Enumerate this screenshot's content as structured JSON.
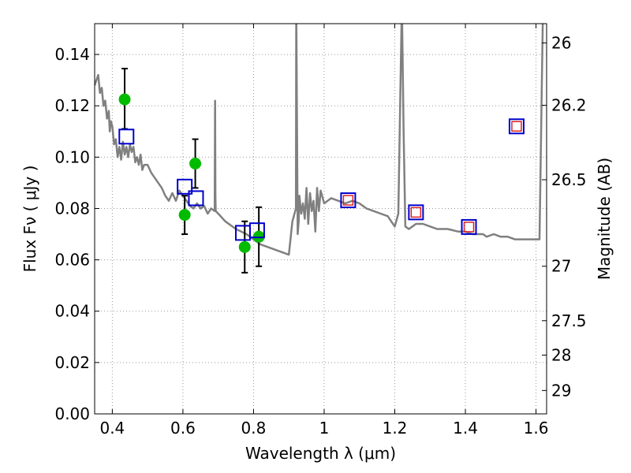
{
  "chart_data": {
    "type": "scatter",
    "title": "",
    "xlabel": "Wavelength  λ (μm)",
    "ylabel": "Flux  Fν  ( μJy )",
    "y2label": "Magnitude (AB)",
    "xlim": [
      0.35,
      1.63
    ],
    "ylim": [
      0.0,
      0.152
    ],
    "grid": true,
    "legend": "none",
    "x_ticks": [
      0.4,
      0.6,
      0.8,
      1.0,
      1.2,
      1.4,
      1.6
    ],
    "x_tick_labels": [
      "0.4",
      "0.6",
      "0.8",
      "1",
      "1.2",
      "1.4",
      "1.6"
    ],
    "y_ticks": [
      0.0,
      0.02,
      0.04,
      0.06,
      0.08,
      0.1,
      0.12,
      0.14
    ],
    "y_tick_labels": [
      "0.00",
      "0.02",
      "0.04",
      "0.06",
      "0.08",
      "0.10",
      "0.12",
      "0.14"
    ],
    "y2_ticks": [
      {
        "label": "26",
        "flux": 0.1445
      },
      {
        "label": "26.2",
        "flux": 0.1202
      },
      {
        "label": "26.5",
        "flux": 0.0912
      },
      {
        "label": "27",
        "flux": 0.0575
      },
      {
        "label": "27.5",
        "flux": 0.0363
      },
      {
        "label": "28",
        "flux": 0.0229
      },
      {
        "label": "29",
        "flux": 0.0091
      }
    ],
    "colors": {
      "model": "#808080",
      "observed": "#00bb00",
      "model_boxes": "#0000cc",
      "red_boxes": "#dd2222",
      "errorbar": "#000000",
      "grid": "#999999"
    },
    "series": [
      {
        "type": "line",
        "x": [
          0.35,
          0.36,
          0.365,
          0.37,
          0.375,
          0.38,
          0.385,
          0.39,
          0.393,
          0.396,
          0.4,
          0.405,
          0.41,
          0.415,
          0.42,
          0.425,
          0.43,
          0.435,
          0.44,
          0.445,
          0.45,
          0.455,
          0.46,
          0.465,
          0.47,
          0.475,
          0.48,
          0.485,
          0.49,
          0.5,
          0.51,
          0.52,
          0.53,
          0.54,
          0.55,
          0.56,
          0.57,
          0.58,
          0.59,
          0.6,
          0.61,
          0.62,
          0.63,
          0.64,
          0.65,
          0.66,
          0.67,
          0.68,
          0.69,
          0.691,
          0.692,
          0.693,
          0.7,
          0.72,
          0.75,
          0.78,
          0.8,
          0.82,
          0.84,
          0.86,
          0.88,
          0.9,
          0.91,
          0.92,
          0.921,
          0.925,
          0.928,
          0.93,
          0.935,
          0.94,
          0.945,
          0.95,
          0.955,
          0.96,
          0.965,
          0.97,
          0.975,
          0.98,
          0.985,
          0.99,
          1.0,
          1.02,
          1.04,
          1.06,
          1.08,
          1.1,
          1.12,
          1.14,
          1.16,
          1.18,
          1.19,
          1.2,
          1.21,
          1.22,
          1.225,
          1.23,
          1.24,
          1.25,
          1.26,
          1.28,
          1.3,
          1.32,
          1.35,
          1.38,
          1.4,
          1.42,
          1.44,
          1.45,
          1.46,
          1.48,
          1.5,
          1.52,
          1.54,
          1.56,
          1.58,
          1.6,
          1.61,
          1.62,
          1.63
        ],
        "y": [
          0.128,
          0.132,
          0.125,
          0.127,
          0.12,
          0.122,
          0.115,
          0.118,
          0.11,
          0.114,
          0.112,
          0.105,
          0.107,
          0.1,
          0.104,
          0.099,
          0.106,
          0.101,
          0.104,
          0.1,
          0.105,
          0.102,
          0.104,
          0.098,
          0.1,
          0.097,
          0.101,
          0.095,
          0.097,
          0.097,
          0.094,
          0.092,
          0.09,
          0.088,
          0.085,
          0.083,
          0.086,
          0.083,
          0.087,
          0.085,
          0.083,
          0.081,
          0.08,
          0.082,
          0.08,
          0.081,
          0.078,
          0.08,
          0.079,
          0.122,
          0.085,
          0.079,
          0.078,
          0.075,
          0.072,
          0.07,
          0.068,
          0.066,
          0.065,
          0.064,
          0.063,
          0.062,
          0.075,
          0.08,
          0.16,
          0.07,
          0.075,
          0.085,
          0.078,
          0.082,
          0.076,
          0.088,
          0.074,
          0.086,
          0.079,
          0.083,
          0.071,
          0.088,
          0.079,
          0.087,
          0.082,
          0.084,
          0.083,
          0.082,
          0.083,
          0.082,
          0.08,
          0.079,
          0.078,
          0.077,
          0.075,
          0.073,
          0.078,
          0.16,
          0.11,
          0.073,
          0.072,
          0.073,
          0.074,
          0.074,
          0.073,
          0.072,
          0.072,
          0.071,
          0.071,
          0.07,
          0.07,
          0.07,
          0.069,
          0.07,
          0.069,
          0.069,
          0.068,
          0.068,
          0.068,
          0.068,
          0.068,
          0.16,
          0.16
        ]
      },
      {
        "type": "scatter-errorbar",
        "marker": "circle",
        "x": [
          0.435,
          0.605,
          0.635,
          0.775,
          0.815
        ],
        "y": [
          0.1225,
          0.0775,
          0.0975,
          0.065,
          0.069
        ],
        "err_low": [
          0.0115,
          0.0075,
          0.0095,
          0.01,
          0.0115
        ],
        "err_high": [
          0.012,
          0.0075,
          0.0095,
          0.01,
          0.0115
        ]
      },
      {
        "type": "scatter",
        "marker": "open-square",
        "x": [
          0.44,
          0.605,
          0.637,
          0.77,
          0.81,
          1.068,
          1.26,
          1.41,
          1.545
        ],
        "y": [
          0.108,
          0.0885,
          0.084,
          0.0705,
          0.0715,
          0.0832,
          0.0785,
          0.0728,
          0.112
        ]
      },
      {
        "type": "scatter",
        "marker": "open-square-small",
        "x": [
          1.068,
          1.26,
          1.41,
          1.545
        ],
        "y": [
          0.0832,
          0.0785,
          0.0728,
          0.112
        ]
      }
    ]
  }
}
